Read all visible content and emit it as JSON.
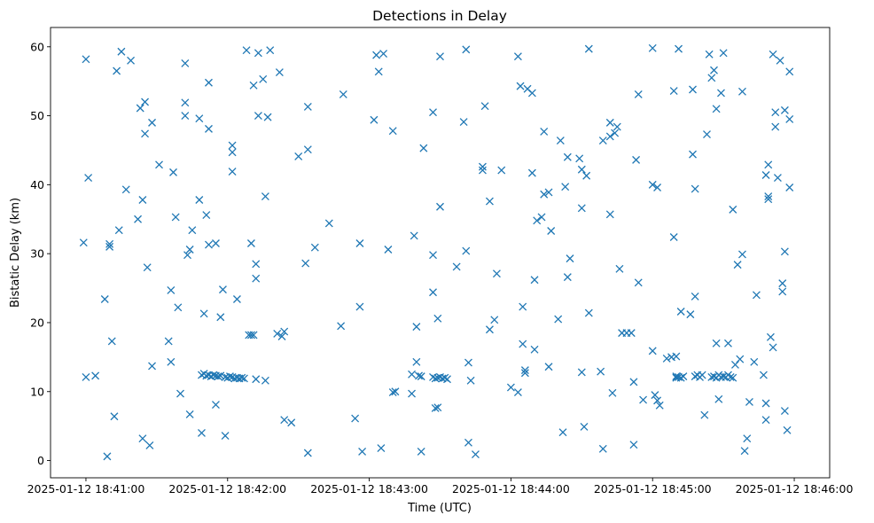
{
  "chart_data": {
    "type": "scatter",
    "title": "Detections in Delay",
    "xlabel": "Time (UTC)",
    "ylabel": "Bistatic Delay (km)",
    "x_units": "seconds after 2025-01-12 18:41:00",
    "xlim": [
      -15,
      315
    ],
    "ylim": [
      -2.5,
      62.8
    ],
    "x_ticks": [
      0,
      60,
      120,
      180,
      240,
      300
    ],
    "x_tick_labels": [
      "2025-01-12 18:41:00",
      "2025-01-12 18:42:00",
      "2025-01-12 18:43:00",
      "2025-01-12 18:44:00",
      "2025-01-12 18:45:00",
      "2025-01-12 18:46:00"
    ],
    "y_ticks": [
      0,
      10,
      20,
      30,
      40,
      50,
      60
    ],
    "y_tick_labels": [
      "0",
      "10",
      "20",
      "30",
      "40",
      "50",
      "60"
    ],
    "marker": "x",
    "color": "#1f77b4",
    "series": [
      {
        "name": "detections",
        "points": [
          [
            -1,
            31.6
          ],
          [
            0,
            58.2
          ],
          [
            0,
            12.1
          ],
          [
            1,
            41.0
          ],
          [
            4,
            12.3
          ],
          [
            8,
            23.4
          ],
          [
            9,
            0.6
          ],
          [
            10,
            31.4
          ],
          [
            10,
            31.0
          ],
          [
            11,
            17.3
          ],
          [
            12,
            6.4
          ],
          [
            13,
            56.5
          ],
          [
            14,
            33.4
          ],
          [
            15,
            59.3
          ],
          [
            17,
            39.3
          ],
          [
            19,
            58.0
          ],
          [
            22,
            35.0
          ],
          [
            23,
            51.1
          ],
          [
            24,
            37.8
          ],
          [
            24,
            3.2
          ],
          [
            25,
            52.0
          ],
          [
            25,
            47.4
          ],
          [
            26,
            28.0
          ],
          [
            27,
            2.2
          ],
          [
            28,
            49.0
          ],
          [
            28,
            13.7
          ],
          [
            31,
            42.9
          ],
          [
            35,
            17.3
          ],
          [
            36,
            24.7
          ],
          [
            36,
            14.3
          ],
          [
            37,
            41.8
          ],
          [
            38,
            35.3
          ],
          [
            39,
            22.2
          ],
          [
            40,
            9.7
          ],
          [
            42,
            51.9
          ],
          [
            42,
            50.0
          ],
          [
            42,
            57.6
          ],
          [
            43,
            29.8
          ],
          [
            44,
            30.6
          ],
          [
            44,
            6.7
          ],
          [
            45,
            33.4
          ],
          [
            48,
            49.6
          ],
          [
            48,
            37.8
          ],
          [
            49,
            12.4
          ],
          [
            49,
            4.0
          ],
          [
            50,
            21.3
          ],
          [
            50,
            12.6
          ],
          [
            51,
            35.6
          ],
          [
            51,
            12.3
          ],
          [
            52,
            54.8
          ],
          [
            52,
            48.1
          ],
          [
            52,
            31.3
          ],
          [
            52,
            12.4
          ],
          [
            53,
            12.2
          ],
          [
            54,
            12.4
          ],
          [
            55,
            31.5
          ],
          [
            55,
            8.1
          ],
          [
            55,
            12.3
          ],
          [
            56,
            12.2
          ],
          [
            57,
            20.8
          ],
          [
            57,
            12.3
          ],
          [
            58,
            24.8
          ],
          [
            59,
            12.1
          ],
          [
            59,
            3.6
          ],
          [
            60,
            12.0
          ],
          [
            61,
            12.2
          ],
          [
            62,
            41.9
          ],
          [
            62,
            44.7
          ],
          [
            62,
            45.7
          ],
          [
            62,
            12.1
          ],
          [
            63,
            11.9
          ],
          [
            64,
            23.4
          ],
          [
            64,
            12.0
          ],
          [
            65,
            11.9
          ],
          [
            66,
            12.0
          ],
          [
            67,
            11.9
          ],
          [
            68,
            59.5
          ],
          [
            69,
            18.2
          ],
          [
            70,
            18.2
          ],
          [
            70,
            31.5
          ],
          [
            71,
            18.2
          ],
          [
            71,
            54.4
          ],
          [
            72,
            11.8
          ],
          [
            72,
            28.5
          ],
          [
            72,
            26.4
          ],
          [
            73,
            59.1
          ],
          [
            73,
            50.0
          ],
          [
            75,
            55.3
          ],
          [
            76,
            38.3
          ],
          [
            76,
            11.6
          ],
          [
            77,
            49.8
          ],
          [
            78,
            59.5
          ],
          [
            81,
            18.4
          ],
          [
            82,
            56.3
          ],
          [
            83,
            18.0
          ],
          [
            84,
            18.7
          ],
          [
            84,
            5.9
          ],
          [
            87,
            5.5
          ],
          [
            90,
            44.1
          ],
          [
            93,
            28.6
          ],
          [
            94,
            51.3
          ],
          [
            94,
            45.1
          ],
          [
            94,
            1.1
          ],
          [
            97,
            30.9
          ],
          [
            103,
            34.4
          ],
          [
            108,
            19.5
          ],
          [
            109,
            53.1
          ],
          [
            114,
            6.1
          ],
          [
            116,
            31.5
          ],
          [
            116,
            22.3
          ],
          [
            117,
            1.3
          ],
          [
            122,
            49.4
          ],
          [
            123,
            58.8
          ],
          [
            124,
            56.4
          ],
          [
            125,
            1.8
          ],
          [
            126,
            59.0
          ],
          [
            128,
            30.6
          ],
          [
            130,
            47.8
          ],
          [
            130,
            9.9
          ],
          [
            131,
            10.0
          ],
          [
            138,
            9.7
          ],
          [
            138,
            12.5
          ],
          [
            139,
            32.6
          ],
          [
            140,
            19.4
          ],
          [
            140,
            14.3
          ],
          [
            141,
            12.3
          ],
          [
            142,
            1.3
          ],
          [
            142,
            12.2
          ],
          [
            143,
            45.3
          ],
          [
            147,
            50.5
          ],
          [
            147,
            24.4
          ],
          [
            147,
            29.8
          ],
          [
            147,
            12.1
          ],
          [
            148,
            7.6
          ],
          [
            148,
            11.9
          ],
          [
            149,
            7.7
          ],
          [
            149,
            12.0
          ],
          [
            149,
            20.6
          ],
          [
            150,
            36.8
          ],
          [
            150,
            12.1
          ],
          [
            150,
            58.6
          ],
          [
            151,
            11.9
          ],
          [
            152,
            12.0
          ],
          [
            153,
            11.8
          ],
          [
            157,
            28.1
          ],
          [
            160,
            49.1
          ],
          [
            161,
            59.6
          ],
          [
            161,
            30.4
          ],
          [
            162,
            14.2
          ],
          [
            162,
            2.6
          ],
          [
            163,
            11.6
          ],
          [
            165,
            0.9
          ],
          [
            168,
            42.1
          ],
          [
            168,
            42.6
          ],
          [
            169,
            51.4
          ],
          [
            171,
            19.0
          ],
          [
            171,
            37.6
          ],
          [
            173,
            20.4
          ],
          [
            174,
            27.1
          ],
          [
            176,
            42.1
          ],
          [
            180,
            10.6
          ],
          [
            183,
            9.9
          ],
          [
            183,
            58.6
          ],
          [
            184,
            54.3
          ],
          [
            185,
            22.3
          ],
          [
            185,
            16.9
          ],
          [
            186,
            13.1
          ],
          [
            186,
            12.7
          ],
          [
            187,
            53.9
          ],
          [
            189,
            53.3
          ],
          [
            189,
            41.7
          ],
          [
            190,
            16.1
          ],
          [
            190,
            26.2
          ],
          [
            191,
            34.8
          ],
          [
            193,
            35.3
          ],
          [
            194,
            38.6
          ],
          [
            194,
            47.7
          ],
          [
            196,
            13.6
          ],
          [
            196,
            38.9
          ],
          [
            197,
            33.3
          ],
          [
            200,
            20.5
          ],
          [
            201,
            46.4
          ],
          [
            202,
            4.1
          ],
          [
            203,
            39.7
          ],
          [
            204,
            44.0
          ],
          [
            204,
            26.6
          ],
          [
            205,
            29.3
          ],
          [
            209,
            43.8
          ],
          [
            210,
            36.6
          ],
          [
            210,
            42.2
          ],
          [
            210,
            12.8
          ],
          [
            211,
            4.9
          ],
          [
            212,
            41.3
          ],
          [
            213,
            21.4
          ],
          [
            213,
            59.7
          ],
          [
            218,
            12.9
          ],
          [
            219,
            46.4
          ],
          [
            219,
            1.7
          ],
          [
            222,
            47.0
          ],
          [
            222,
            49.0
          ],
          [
            222,
            35.7
          ],
          [
            223,
            9.8
          ],
          [
            224,
            47.5
          ],
          [
            225,
            48.4
          ],
          [
            226,
            27.8
          ],
          [
            227,
            18.5
          ],
          [
            229,
            18.5
          ],
          [
            231,
            18.5
          ],
          [
            232,
            2.3
          ],
          [
            232,
            11.4
          ],
          [
            233,
            43.6
          ],
          [
            234,
            53.1
          ],
          [
            234,
            25.8
          ],
          [
            236,
            8.8
          ],
          [
            240,
            40.0
          ],
          [
            240,
            15.9
          ],
          [
            240,
            59.8
          ],
          [
            241,
            9.5
          ],
          [
            242,
            8.7
          ],
          [
            242,
            39.6
          ],
          [
            243,
            8.0
          ],
          [
            246,
            14.8
          ],
          [
            248,
            15.0
          ],
          [
            249,
            53.6
          ],
          [
            249,
            32.4
          ],
          [
            250,
            12.2
          ],
          [
            250,
            15.1
          ],
          [
            250,
            12.0
          ],
          [
            251,
            59.7
          ],
          [
            251,
            12.1
          ],
          [
            252,
            21.6
          ],
          [
            252,
            12.0
          ],
          [
            253,
            12.2
          ],
          [
            256,
            21.2
          ],
          [
            257,
            53.8
          ],
          [
            257,
            44.4
          ],
          [
            258,
            39.4
          ],
          [
            258,
            23.8
          ],
          [
            258,
            12.2
          ],
          [
            259,
            12.4
          ],
          [
            260,
            12.1
          ],
          [
            261,
            12.4
          ],
          [
            262,
            6.6
          ],
          [
            263,
            47.3
          ],
          [
            264,
            58.9
          ],
          [
            265,
            12.1
          ],
          [
            265,
            55.5
          ],
          [
            266,
            12.2
          ],
          [
            266,
            56.6
          ],
          [
            267,
            51.0
          ],
          [
            267,
            17.0
          ],
          [
            267,
            12.0
          ],
          [
            268,
            12.4
          ],
          [
            268,
            8.9
          ],
          [
            269,
            53.3
          ],
          [
            269,
            12.1
          ],
          [
            270,
            59.1
          ],
          [
            270,
            12.2
          ],
          [
            271,
            12.1
          ],
          [
            272,
            12.4
          ],
          [
            272,
            17.0
          ],
          [
            273,
            12.1
          ],
          [
            274,
            36.4
          ],
          [
            274,
            12.0
          ],
          [
            275,
            13.9
          ],
          [
            276,
            28.4
          ],
          [
            277,
            14.7
          ],
          [
            278,
            53.5
          ],
          [
            278,
            29.9
          ],
          [
            279,
            1.4
          ],
          [
            280,
            3.2
          ],
          [
            281,
            8.5
          ],
          [
            283,
            14.3
          ],
          [
            284,
            24.0
          ],
          [
            287,
            12.4
          ],
          [
            288,
            41.4
          ],
          [
            288,
            8.3
          ],
          [
            288,
            5.9
          ],
          [
            289,
            42.9
          ],
          [
            289,
            37.9
          ],
          [
            289,
            38.3
          ],
          [
            290,
            17.9
          ],
          [
            291,
            16.4
          ],
          [
            291,
            58.9
          ],
          [
            292,
            48.4
          ],
          [
            292,
            50.5
          ],
          [
            293,
            41.0
          ],
          [
            294,
            58.0
          ],
          [
            295,
            24.5
          ],
          [
            295,
            25.7
          ],
          [
            296,
            30.3
          ],
          [
            296,
            50.8
          ],
          [
            296,
            7.2
          ],
          [
            297,
            4.4
          ],
          [
            298,
            56.4
          ],
          [
            298,
            39.6
          ],
          [
            298,
            49.5
          ]
        ]
      }
    ]
  }
}
